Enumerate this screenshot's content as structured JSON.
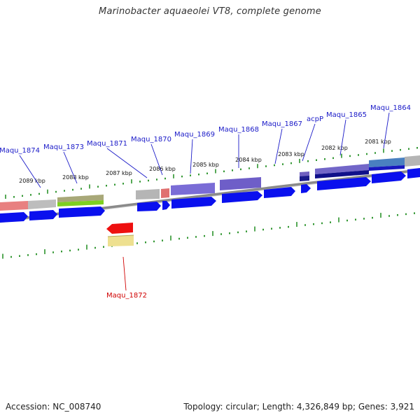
{
  "title": "Marinobacter aquaeolei VT8, complete genome",
  "footer": {
    "accession": "Accession: NC_008740",
    "summary": "Topology: circular; Length: 4,326,849 bp; Genes: 3,921"
  },
  "map": {
    "colors": {
      "backbone": "#8a8a8a",
      "cds_arrow": "#0a10ee",
      "tick": "#1e8c1e",
      "gene_label": "#1a1ac8",
      "highlight_label": "#d00000"
    },
    "scale_labels": [
      "2089 kbp",
      "2088 kbp",
      "2087 kbp",
      "2086 kbp",
      "2085 kbp",
      "2084 kbp",
      "2083 kbp",
      "2082 kbp",
      "2081 kbp"
    ],
    "genes": [
      {
        "label": "Maqu_1874"
      },
      {
        "label": "Maqu_1873"
      },
      {
        "label": "Maqu_1871"
      },
      {
        "label": "Maqu_1870"
      },
      {
        "label": "Maqu_1869"
      },
      {
        "label": "Maqu_1868"
      },
      {
        "label": "Maqu_1867"
      },
      {
        "label": "acpP"
      },
      {
        "label": "Maqu_1865"
      },
      {
        "label": "Maqu_1864"
      }
    ],
    "highlight_gene": {
      "label": "Maqu_1872"
    }
  }
}
